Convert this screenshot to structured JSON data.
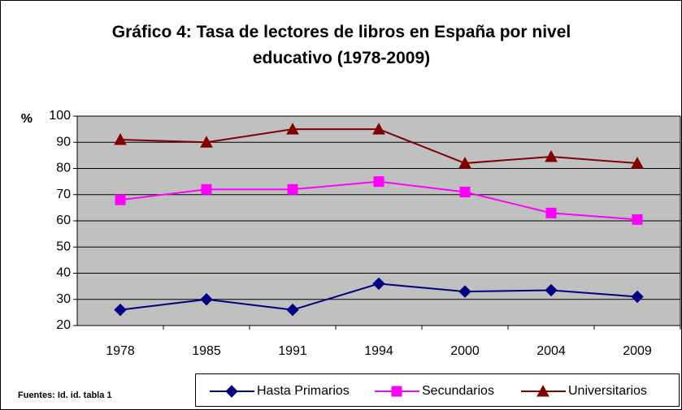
{
  "chart_data": {
    "type": "line",
    "title": "Gráfico 4: Tasa de lectores de libros en España por nivel educativo (1978-2009)",
    "y_label": "%",
    "note": "Fuentes: Id. id. tabla 1",
    "categories": [
      "1978",
      "1985",
      "1991",
      "1994",
      "2000",
      "2004",
      "2009"
    ],
    "series": [
      {
        "name": "Hasta Primarios",
        "color": "#000080",
        "marker": "diamond",
        "values": [
          26,
          30,
          26,
          36,
          33,
          33.5,
          31
        ]
      },
      {
        "name": "Secundarios",
        "color": "#ff00ff",
        "marker": "square",
        "values": [
          68,
          72,
          72,
          75,
          71,
          63,
          60.5
        ]
      },
      {
        "name": "Universitarios",
        "color": "#800000",
        "marker": "triangle",
        "values": [
          91,
          90,
          95,
          95,
          82,
          84.5,
          82
        ]
      }
    ],
    "ylim": [
      20,
      100
    ],
    "yticks": [
      20,
      30,
      40,
      50,
      60,
      70,
      80,
      90,
      100
    ],
    "grid": true,
    "plot_background": "#c0c0c0",
    "legend": "bottom"
  }
}
